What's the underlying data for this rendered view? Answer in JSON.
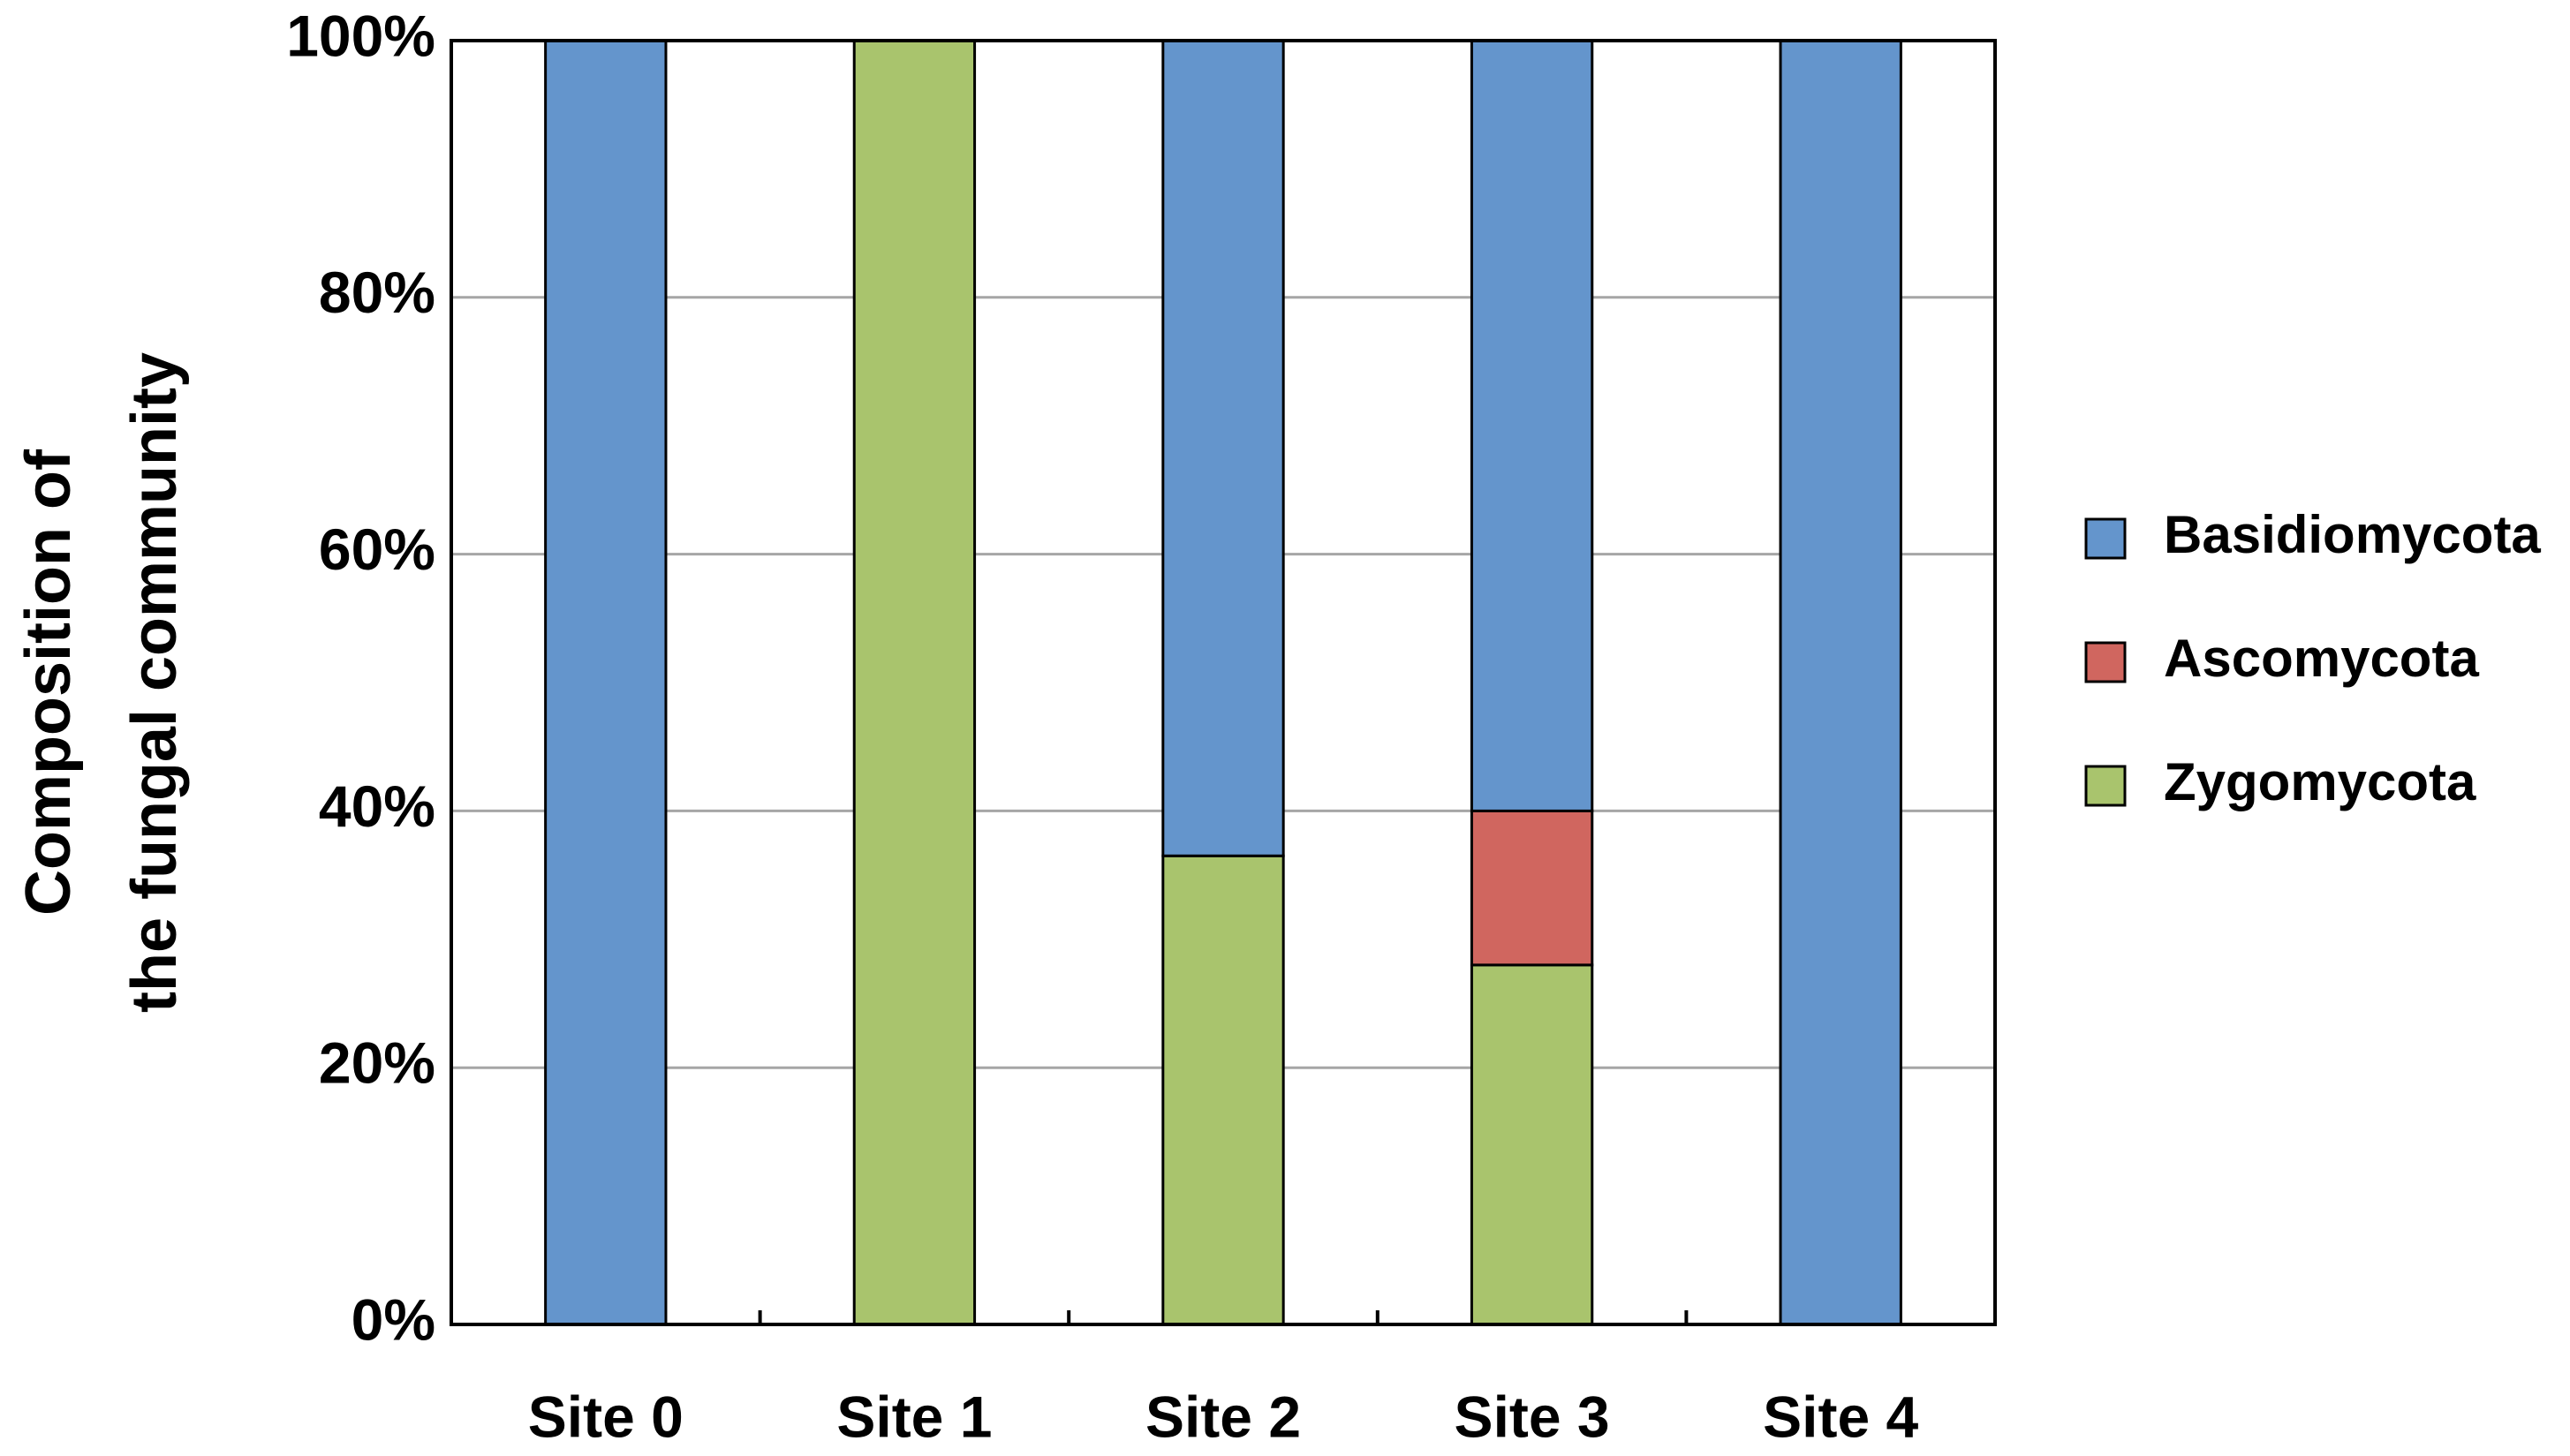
{
  "chart_data": {
    "type": "bar",
    "stacked": true,
    "y_label": [
      "Composition of",
      "the fungal community"
    ],
    "categories": [
      "Site 0",
      "Site 1",
      "Site 2",
      "Site 3",
      "Site 4"
    ],
    "series": [
      {
        "name": "Basidiomycota",
        "color": "#6495cc",
        "values": [
          100,
          0,
          63.5,
          60,
          100
        ]
      },
      {
        "name": "Ascomycota",
        "color": "#d0665f",
        "values": [
          0,
          0,
          0,
          12,
          0
        ]
      },
      {
        "name": "Zygomycota",
        "color": "#a9c46d",
        "values": [
          0,
          100,
          36.5,
          28,
          0
        ]
      }
    ],
    "ylim": [
      0,
      100
    ],
    "yticks": [
      {
        "value": 0,
        "label": "0%"
      },
      {
        "value": 20,
        "label": "20%"
      },
      {
        "value": 40,
        "label": "40%"
      },
      {
        "value": 60,
        "label": "60%"
      },
      {
        "value": 80,
        "label": "80%"
      },
      {
        "value": 100,
        "label": "100%"
      }
    ],
    "grid": true,
    "legend": "right"
  }
}
